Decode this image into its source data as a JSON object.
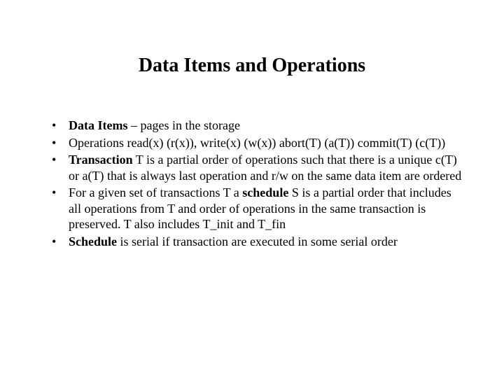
{
  "slide": {
    "title": "Data Items and Operations",
    "title_fontsize": 28,
    "body_fontsize": 18,
    "text_color": "#000000",
    "background_color": "#ffffff",
    "font_family": "Times New Roman",
    "bullets": [
      {
        "runs": [
          {
            "text": "Data Items",
            "bold": true
          },
          {
            "text": " – pages in the storage",
            "bold": false
          }
        ]
      },
      {
        "runs": [
          {
            "text": "Operations read(x) (r(x)), write(x) (w(x)) abort(T) (a(T)) commit(T) (c(T))",
            "bold": false
          }
        ]
      },
      {
        "runs": [
          {
            "text": "Transaction",
            "bold": true
          },
          {
            "text": " T is a partial order of operations such that there is a unique c(T) or a(T) that is always last operation and r/w on the same data item are ordered",
            "bold": false
          }
        ]
      },
      {
        "runs": [
          {
            "text": "For a given set of transactions T a ",
            "bold": false
          },
          {
            "text": "schedule",
            "bold": true
          },
          {
            "text": "  S  is a partial order that includes all operations from T and order of operations in the same transaction is preserved. T also includes T_init and T_fin",
            "bold": false
          }
        ]
      },
      {
        "runs": [
          {
            "text": "Schedule",
            "bold": true
          },
          {
            "text": " is serial if transaction are executed in some serial order",
            "bold": false
          }
        ]
      }
    ]
  }
}
